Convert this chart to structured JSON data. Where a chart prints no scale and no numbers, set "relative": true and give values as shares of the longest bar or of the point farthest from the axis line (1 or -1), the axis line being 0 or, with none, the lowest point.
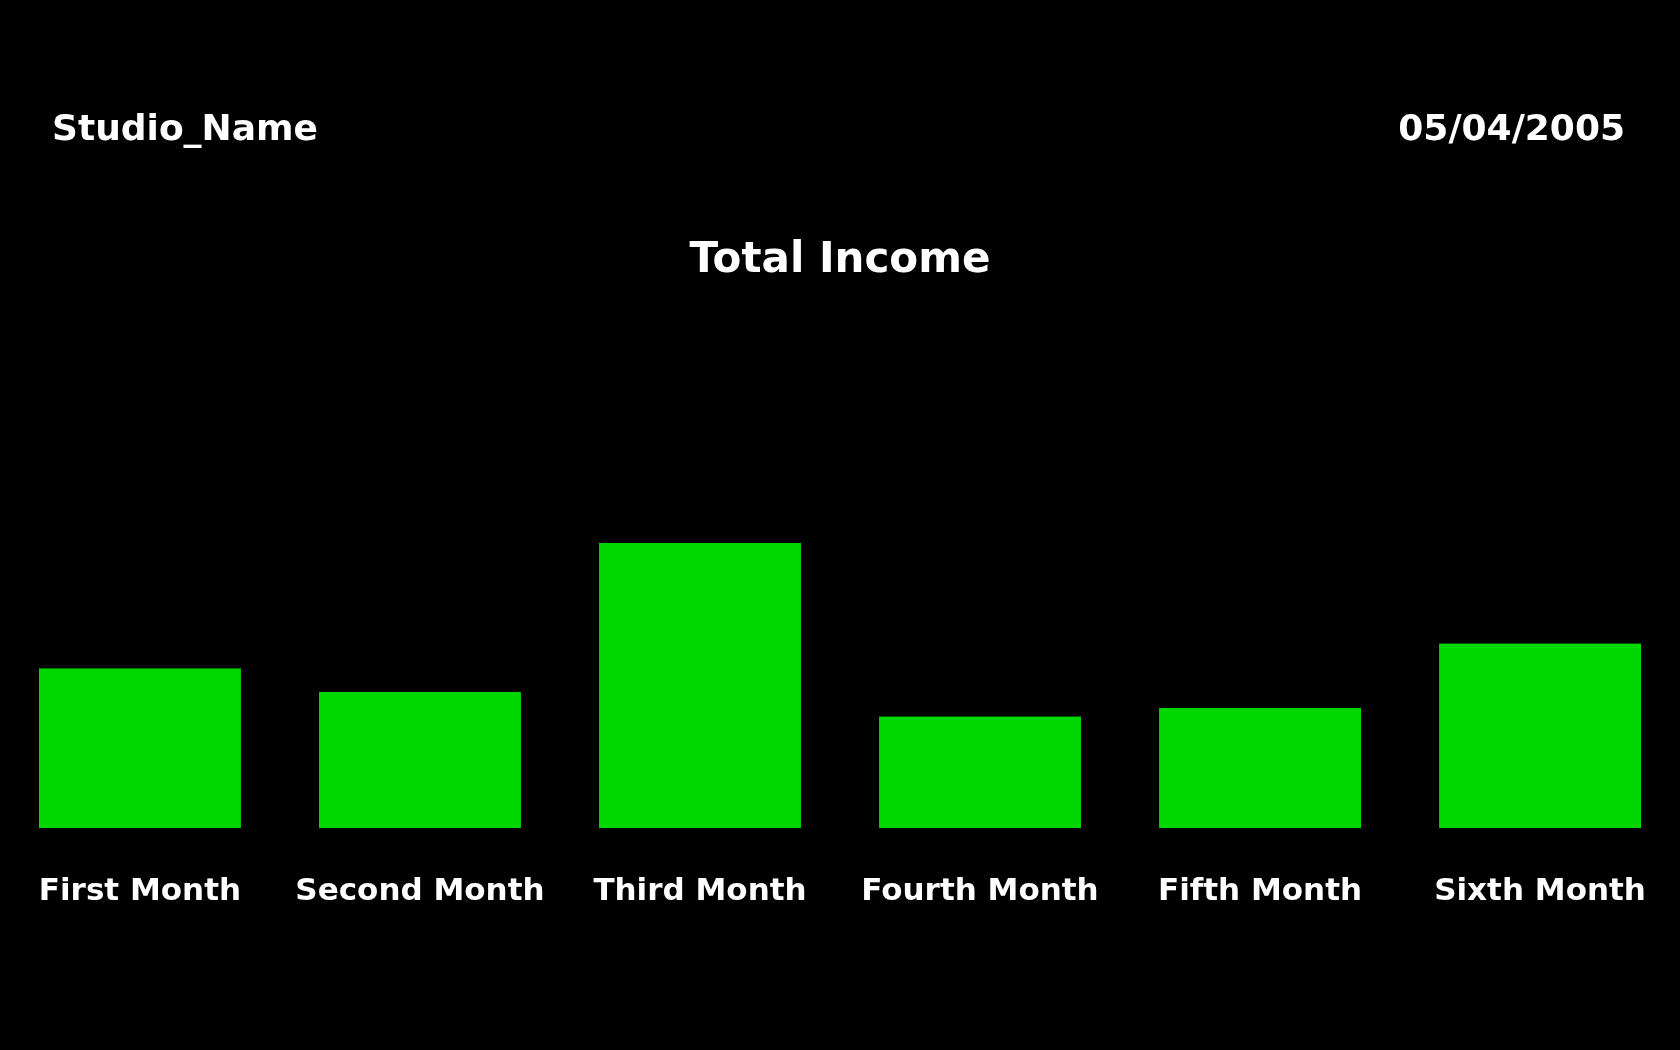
{
  "chart_data": {
    "type": "bar",
    "title": "Total Income",
    "annotations": [
      "Studio_Name",
      "05/04/2005"
    ],
    "categories": [
      "First Month",
      "Second Month",
      "Third Month",
      "Fourth Month",
      "Fifth Month",
      "Sixth Month"
    ],
    "values": [
      0.56,
      0.477,
      1,
      0.391,
      0.421,
      0.647
    ],
    "color": "#00d800",
    "relative": true
  }
}
